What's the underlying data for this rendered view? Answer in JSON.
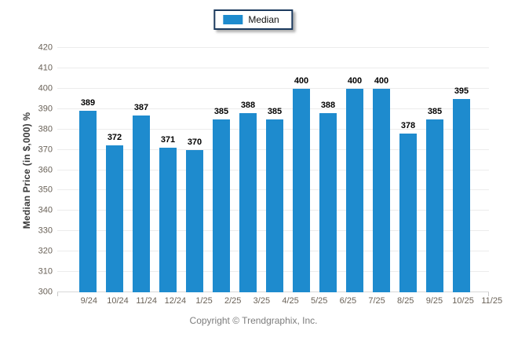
{
  "legend": {
    "items": [
      {
        "label": "Median",
        "color": "#1e8bce"
      }
    ]
  },
  "footer": {
    "copyright": "Copyright © Trendgraphix, Inc."
  },
  "colors": {
    "bar": "#1e8bce",
    "gridline": "#ececec",
    "baseline": "#d8d8d8",
    "tick_text": "#6a6258",
    "value_label": "#000000",
    "legend_border": "#1c3a5e",
    "copyright_text": "#7d7d7d"
  },
  "chart_data": {
    "type": "bar",
    "title": "",
    "series": [
      {
        "name": "Median",
        "values": [
          389,
          372,
          387,
          371,
          370,
          385,
          388,
          385,
          400,
          388,
          400,
          400,
          378,
          385,
          395
        ]
      }
    ],
    "categories": [
      "9/24",
      "10/24",
      "11/24",
      "12/24",
      "1/25",
      "2/25",
      "3/25",
      "4/25",
      "5/25",
      "6/25",
      "7/25",
      "8/25",
      "9/25",
      "10/25",
      "11/25"
    ],
    "xlabel": "",
    "ylabel": "Median Price (in $,000) %",
    "ylim": [
      300,
      420
    ],
    "yticks": [
      300,
      310,
      320,
      330,
      340,
      350,
      360,
      370,
      380,
      390,
      400,
      410,
      420
    ],
    "grid": true,
    "value_labels": true,
    "legend_position": "top-center",
    "bar_color": "#1e8bce"
  }
}
